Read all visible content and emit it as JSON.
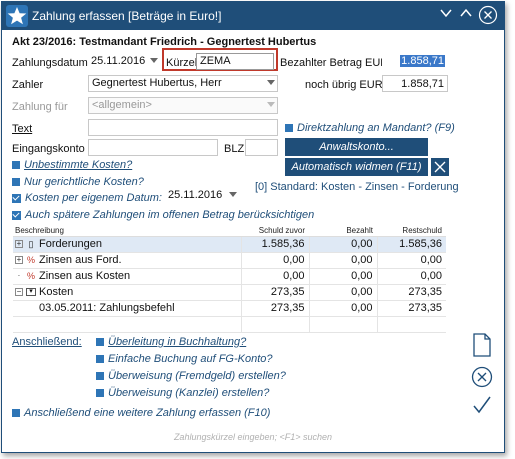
{
  "window": {
    "title": "Zahlung erfassen [Beträge in Euro!]"
  },
  "header": {
    "akte": "Akt 23/2016: Testmandant Friedrich - Gegnertest Hubertus"
  },
  "form": {
    "zahlungsdatum_label": "Zahlungsdatum",
    "zahlungsdatum_value": "25.11.2016",
    "kuerzel_label": "Kürzel",
    "kuerzel_value": "ZEMA",
    "bezahlter_betrag_label": "Bezahlter Betrag EUR",
    "bezahlter_betrag_value": "1.858,71",
    "zahler_label": "Zahler",
    "zahler_value": "Gegnertest Hubertus, Herr",
    "noch_uebrig_label": "noch übrig EUR",
    "noch_uebrig_value": "1.858,71",
    "zahlung_fuer_label": "Zahlung für",
    "zahlung_fuer_value": "<allgemein>",
    "text_label": "Text",
    "text_value": "",
    "direktzahlung_label": "Direktzahlung an Mandant? (F9)",
    "eingangskonto_label": "Eingangskonto",
    "eingangskonto_value": "",
    "blz_label": "BLZ",
    "blz_value": "",
    "anwaltskonto_label": "Anwaltskonto...",
    "unbestimmte_kosten_label": "Unbestimmte Kosten?",
    "automatisch_widmen_label": "Automatisch widmen (F11)",
    "nur_gerichtliche_label": "Nur gerichtliche Kosten?",
    "kosten_eigenes_datum_label": "Kosten per eigenem Datum:",
    "kosten_datum_value": "25.11.2016",
    "standard_label": "[0] Standard: Kosten - Zinsen - Forderung",
    "auch_spaetere_label": "Auch spätere Zahlungen im offenen Betrag berücksichtigen"
  },
  "table": {
    "headers": [
      "Beschreibung",
      "Schuld zuvor",
      "Bezahlt",
      "Restschuld"
    ],
    "rows": [
      {
        "label": "Forderungen",
        "schuld": "1.585,36",
        "bezahlt": "0,00",
        "rest": "1.585,36"
      },
      {
        "label": "Zinsen aus Ford.",
        "schuld": "0,00",
        "bezahlt": "0,00",
        "rest": "0,00"
      },
      {
        "label": "Zinsen aus Kosten",
        "schuld": "0,00",
        "bezahlt": "0,00",
        "rest": "0,00"
      },
      {
        "label": "Kosten",
        "schuld": "273,35",
        "bezahlt": "0,00",
        "rest": "273,35"
      },
      {
        "label": "03.05.2011: Zahlungsbefehl",
        "schuld": "273,35",
        "bezahlt": "0,00",
        "rest": "273,35"
      }
    ]
  },
  "anschliessend": {
    "label": "Anschließend:",
    "options": [
      "Überleitung in Buchhaltung?",
      "Einfache Buchung auf FG-Konto?",
      "Überweisung (Fremdgeld) erstellen?",
      "Überweisung (Kanzlei) erstellen?"
    ],
    "weitere": "Anschließend eine weitere Zahlung erfassen (F10)"
  },
  "statusbar": {
    "hint": "Zahlungskürzel eingeben; <F1> suchen"
  },
  "colors": {
    "accent": "#1f4e79",
    "highlight_border": "#c0392b",
    "selection": "#dfe9f5"
  }
}
